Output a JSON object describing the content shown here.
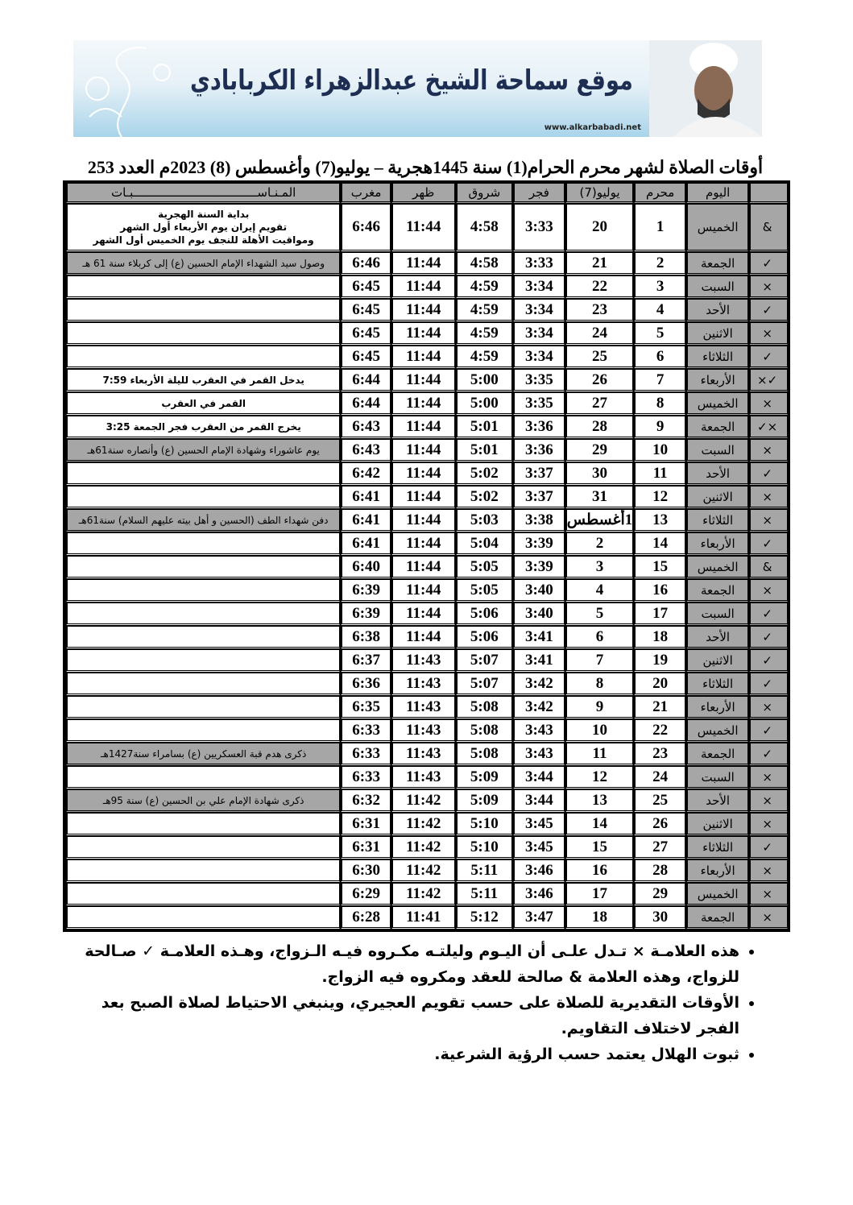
{
  "banner": {
    "title": "موقع سماحة الشيخ عبدالزهراء الكربابادي",
    "url": "www.alkarbabadi.net"
  },
  "title": "أوقات الصلاة لشهر محرم الحرام(1) سنة 1445هجرية – يوليو(7) وأغسطس (8) 2023م العدد 253",
  "headers": [
    "",
    "اليوم",
    "محرم",
    "يوليو(7)",
    "فجر",
    "شروق",
    "ظهر",
    "مغرب",
    "المـنـاســـــــــــــــــــــــــــــــــــبـات"
  ],
  "rows": [
    [
      "&",
      "الخميس",
      "1",
      "20",
      "3:33",
      "4:58",
      "11:44",
      "6:46",
      "بداية السنة الهجرية\nتقويم إيران يوم الأربعاء أول الشهر\nومواقيت الأهلة للنجف يوم الخميس أول الشهر",
      false
    ],
    [
      "✓",
      "الجمعة",
      "2",
      "21",
      "3:33",
      "4:58",
      "11:44",
      "6:46",
      "وصول سيد الشهداء الإمام الحسين (ع) إلى كربلاء سنة 61 هـ",
      true
    ],
    [
      "×",
      "السبت",
      "3",
      "22",
      "3:34",
      "4:59",
      "11:44",
      "6:45",
      "",
      false
    ],
    [
      "✓",
      "الأحد",
      "4",
      "23",
      "3:34",
      "4:59",
      "11:44",
      "6:45",
      "",
      false
    ],
    [
      "×",
      "الاثنين",
      "5",
      "24",
      "3:34",
      "4:59",
      "11:44",
      "6:45",
      "",
      false
    ],
    [
      "✓",
      "الثلاثاء",
      "6",
      "25",
      "3:34",
      "4:59",
      "11:44",
      "6:45",
      "",
      false
    ],
    [
      "×✓",
      "الأربعاء",
      "7",
      "26",
      "3:35",
      "5:00",
      "11:44",
      "6:44",
      "يدخل القمر في العقرب لليلة الأربعاء 7:59",
      false
    ],
    [
      "×",
      "الخميس",
      "8",
      "27",
      "3:35",
      "5:00",
      "11:44",
      "6:44",
      "القمر في العقرب",
      false
    ],
    [
      "✓×",
      "الجمعة",
      "9",
      "28",
      "3:36",
      "5:01",
      "11:44",
      "6:43",
      "يخرج القمر من العقرب فجر الجمعة 3:25",
      false
    ],
    [
      "×",
      "السبت",
      "10",
      "29",
      "3:36",
      "5:01",
      "11:44",
      "6:43",
      "يوم عاشوراء وشهادة الإمام الحسين (ع) وأنصاره سنة61هـ",
      true
    ],
    [
      "✓",
      "الأحد",
      "11",
      "30",
      "3:37",
      "5:02",
      "11:44",
      "6:42",
      "",
      false
    ],
    [
      "×",
      "الاثنين",
      "12",
      "31",
      "3:37",
      "5:02",
      "11:44",
      "6:41",
      "",
      false
    ],
    [
      "×",
      "الثلاثاء",
      "13",
      "1أغسطس",
      "3:38",
      "5:03",
      "11:44",
      "6:41",
      "دفن شهداء الطف (الحسين و أهل بيته عليهم السلام) سنة61هـ",
      true
    ],
    [
      "✓",
      "الأربعاء",
      "14",
      "2",
      "3:39",
      "5:04",
      "11:44",
      "6:41",
      "",
      false
    ],
    [
      "&",
      "الخميس",
      "15",
      "3",
      "3:39",
      "5:05",
      "11:44",
      "6:40",
      "",
      false
    ],
    [
      "×",
      "الجمعة",
      "16",
      "4",
      "3:40",
      "5:05",
      "11:44",
      "6:39",
      "",
      false
    ],
    [
      "✓",
      "السبت",
      "17",
      "5",
      "3:40",
      "5:06",
      "11:44",
      "6:39",
      "",
      false
    ],
    [
      "✓",
      "الأحد",
      "18",
      "6",
      "3:41",
      "5:06",
      "11:44",
      "6:38",
      "",
      false
    ],
    [
      "✓",
      "الاثنين",
      "19",
      "7",
      "3:41",
      "5:07",
      "11:43",
      "6:37",
      "",
      false
    ],
    [
      "✓",
      "الثلاثاء",
      "20",
      "8",
      "3:42",
      "5:07",
      "11:43",
      "6:36",
      "",
      false
    ],
    [
      "×",
      "الأربعاء",
      "21",
      "9",
      "3:42",
      "5:08",
      "11:43",
      "6:35",
      "",
      false
    ],
    [
      "✓",
      "الخميس",
      "22",
      "10",
      "3:43",
      "5:08",
      "11:43",
      "6:33",
      "",
      false
    ],
    [
      "✓",
      "الجمعة",
      "23",
      "11",
      "3:43",
      "5:08",
      "11:43",
      "6:33",
      "ذكرى هدم قبة العسكريين (ع) بسامراء سنة1427هـ",
      true
    ],
    [
      "×",
      "السبت",
      "24",
      "12",
      "3:44",
      "5:09",
      "11:43",
      "6:33",
      "",
      false
    ],
    [
      "×",
      "الأحد",
      "25",
      "13",
      "3:44",
      "5:09",
      "11:42",
      "6:32",
      "ذكرى شهادة الإمام علي بن الحسين (ع) سنة 95هـ",
      true
    ],
    [
      "×",
      "الاثنين",
      "26",
      "14",
      "3:45",
      "5:10",
      "11:42",
      "6:31",
      "",
      false
    ],
    [
      "✓",
      "الثلاثاء",
      "27",
      "15",
      "3:45",
      "5:10",
      "11:42",
      "6:31",
      "",
      false
    ],
    [
      "×",
      "الأربعاء",
      "28",
      "16",
      "3:46",
      "5:11",
      "11:42",
      "6:30",
      "",
      false
    ],
    [
      "×",
      "الخميس",
      "29",
      "17",
      "3:46",
      "5:11",
      "11:42",
      "6:29",
      "",
      false
    ],
    [
      "×",
      "الجمعة",
      "30",
      "18",
      "3:47",
      "5:12",
      "11:41",
      "6:28",
      "",
      false
    ]
  ],
  "notes": [
    "هذه العلامـة × تـدل علـى أن اليـوم وليلتـه مكـروه فيـه الـزواج، وهـذه العلامـة ✓ صـالحة للزواج، وهذه العلامة & صالحة للعقد ومكروه فيه الزواج.",
    "الأوقات التقديرية للصلاة على حسب تقويم العجيري، وينبغي الاحتياط لصلاة الصبح بعد الفجر لاختلاف التقاويم.",
    "ثبوت الهلال يعتمد حسب الرؤية الشرعية."
  ]
}
